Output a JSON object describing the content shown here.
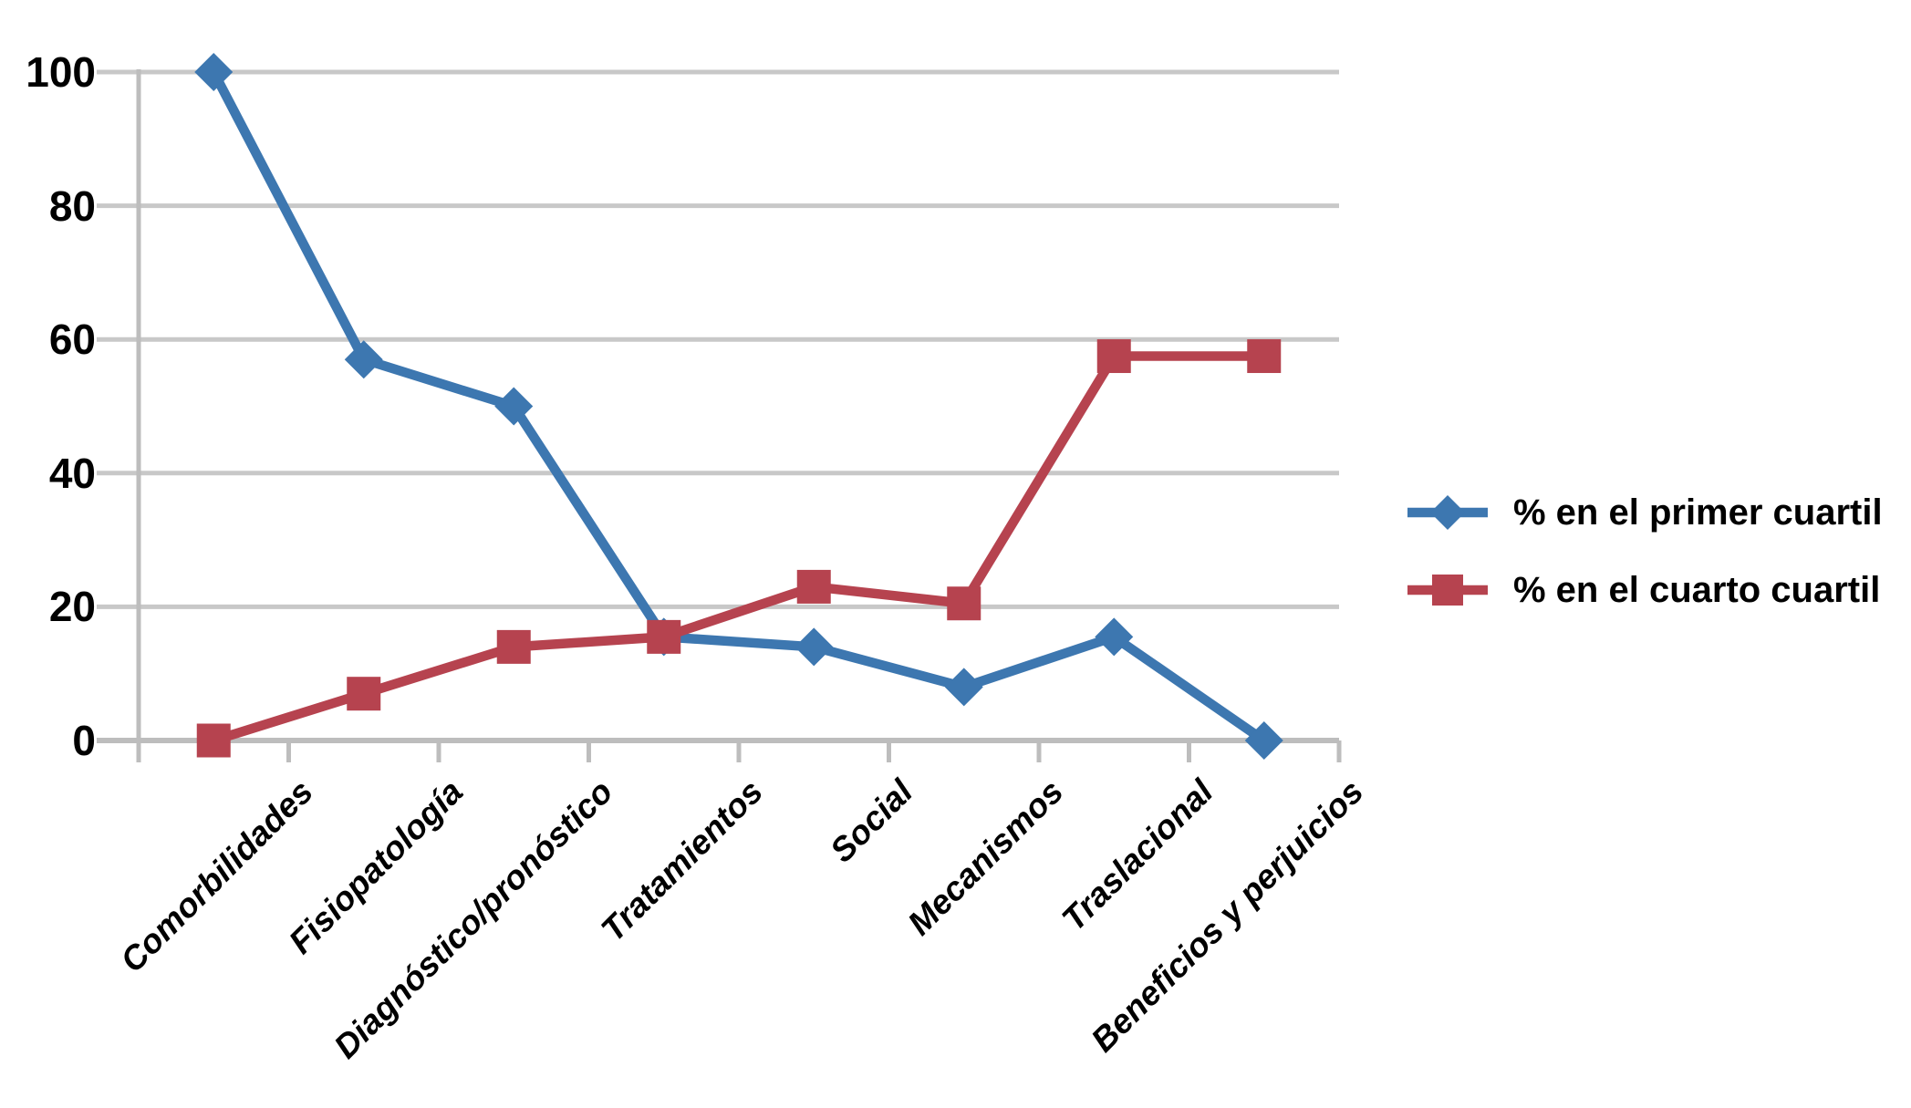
{
  "chart_data": {
    "type": "line",
    "title": "",
    "xlabel": "",
    "ylabel": "",
    "categories": [
      "Comorbilidades",
      "Fisiopatología",
      "Diagnóstico/pronóstico",
      "Tratamientos",
      "Social",
      "Mecanismos",
      "Traslacional",
      "Beneficios y perjuicios"
    ],
    "series": [
      {
        "name": "% en el primer cuartil",
        "marker": "diamond",
        "color": "#3D77B0",
        "values": [
          100,
          57,
          50,
          15.5,
          14,
          8,
          15.5,
          0
        ]
      },
      {
        "name": "% en el cuarto cuartil",
        "marker": "square",
        "color": "#B6434F",
        "values": [
          0,
          7,
          14,
          15.5,
          23,
          20.5,
          57.5,
          57.5
        ]
      }
    ],
    "ylim": [
      0,
      100
    ],
    "ytick_step": 20,
    "ytick_labels": [
      "0",
      "20",
      "40",
      "60",
      "80",
      "100"
    ],
    "grid": "horizontal",
    "legend_position": "right-middle"
  },
  "colors": {
    "background": "#FFFFFF",
    "gridline": "#C8C8C8",
    "axis": "#BDBDBD",
    "text": "#000000",
    "series_primer": "#3D77B0",
    "series_cuarto": "#B6434F"
  }
}
